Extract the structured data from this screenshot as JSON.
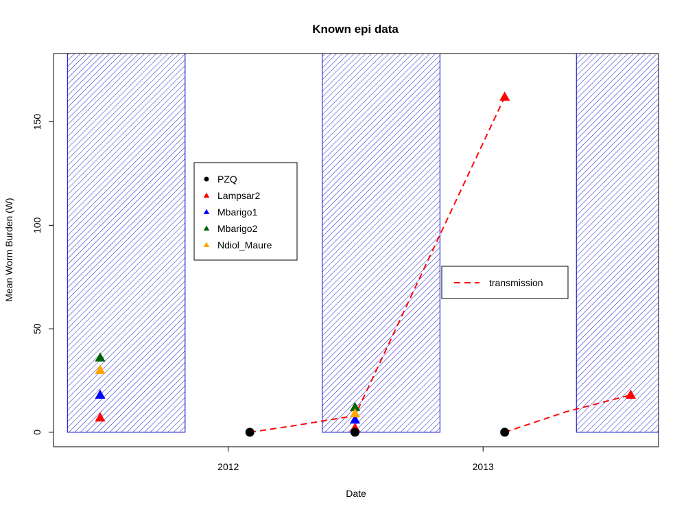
{
  "chart_data": {
    "type": "scatter",
    "title": "Known epi data",
    "xlabel": "Date",
    "ylabel": "Mean Worm Burden (W)",
    "xlim": [
      "2011-04-25",
      "2013-09-10"
    ],
    "ylim": [
      -7,
      183
    ],
    "x_ticks": [
      {
        "date": "2012-01-01",
        "label": "2012"
      },
      {
        "date": "2013-01-01",
        "label": "2013"
      }
    ],
    "y_ticks": [
      {
        "value": 0,
        "label": "0"
      },
      {
        "value": 50,
        "label": "50"
      },
      {
        "value": 100,
        "label": "100"
      },
      {
        "value": 150,
        "label": "150"
      }
    ],
    "grid": false,
    "colors": {
      "shade": "#0000cc",
      "PZQ": "#000000",
      "Lampsar2": "#ff0000",
      "Mbarigo1": "#0000ff",
      "Mbarigo2": "#006400",
      "Ndiol_Maure": "#ffa500",
      "transmission": "#ff0000"
    },
    "shaded_periods": [
      {
        "start": "2011-05-15",
        "end": "2011-10-31"
      },
      {
        "start": "2012-05-15",
        "end": "2012-10-31"
      },
      {
        "start": "2013-05-15",
        "end": "2013-09-10"
      }
    ],
    "pzq": {
      "name": "PZQ",
      "points": [
        {
          "date": "2012-02-01",
          "value": 0
        },
        {
          "date": "2012-07-01",
          "value": 0
        },
        {
          "date": "2013-02-01",
          "value": 0
        }
      ]
    },
    "series": [
      {
        "name": "Lampsar2",
        "points": [
          {
            "date": "2011-07-01",
            "value": 7
          },
          {
            "date": "2012-07-01",
            "value": 2
          },
          {
            "date": "2013-02-01",
            "value": 162
          },
          {
            "date": "2013-08-01",
            "value": 18
          }
        ]
      },
      {
        "name": "Mbarigo1",
        "points": [
          {
            "date": "2011-07-01",
            "value": 18
          },
          {
            "date": "2012-07-01",
            "value": 6
          }
        ]
      },
      {
        "name": "Mbarigo2",
        "points": [
          {
            "date": "2011-07-01",
            "value": 36
          },
          {
            "date": "2012-07-01",
            "value": 12
          }
        ]
      },
      {
        "name": "Ndiol_Maure",
        "points": [
          {
            "date": "2011-07-01",
            "value": 30
          },
          {
            "date": "2012-07-01",
            "value": 9
          }
        ]
      }
    ],
    "transmission": {
      "name": "transmission",
      "segments": [
        [
          {
            "date": "2012-02-01",
            "value": 0
          },
          {
            "date": "2012-04-01",
            "value": 3
          },
          {
            "date": "2012-07-01",
            "value": 8
          },
          {
            "date": "2013-02-01",
            "value": 162
          }
        ],
        [
          {
            "date": "2013-02-01",
            "value": 0
          },
          {
            "date": "2013-05-01",
            "value": 10
          },
          {
            "date": "2013-08-01",
            "value": 18
          }
        ]
      ]
    },
    "legend_points": {
      "placement": "left-middle",
      "entries": [
        {
          "label": "PZQ",
          "shape": "circle",
          "color": "#000000"
        },
        {
          "label": "Lampsar2",
          "shape": "triangle",
          "color": "#ff0000"
        },
        {
          "label": "Mbarigo1",
          "shape": "triangle",
          "color": "#0000ff"
        },
        {
          "label": "Mbarigo2",
          "shape": "triangle",
          "color": "#006400"
        },
        {
          "label": "Ndiol_Maure",
          "shape": "triangle",
          "color": "#ffa500"
        }
      ]
    },
    "legend_lines": {
      "placement": "right-middle",
      "entries": [
        {
          "label": "transmission",
          "style": "dashed",
          "color": "#ff0000"
        }
      ]
    }
  }
}
